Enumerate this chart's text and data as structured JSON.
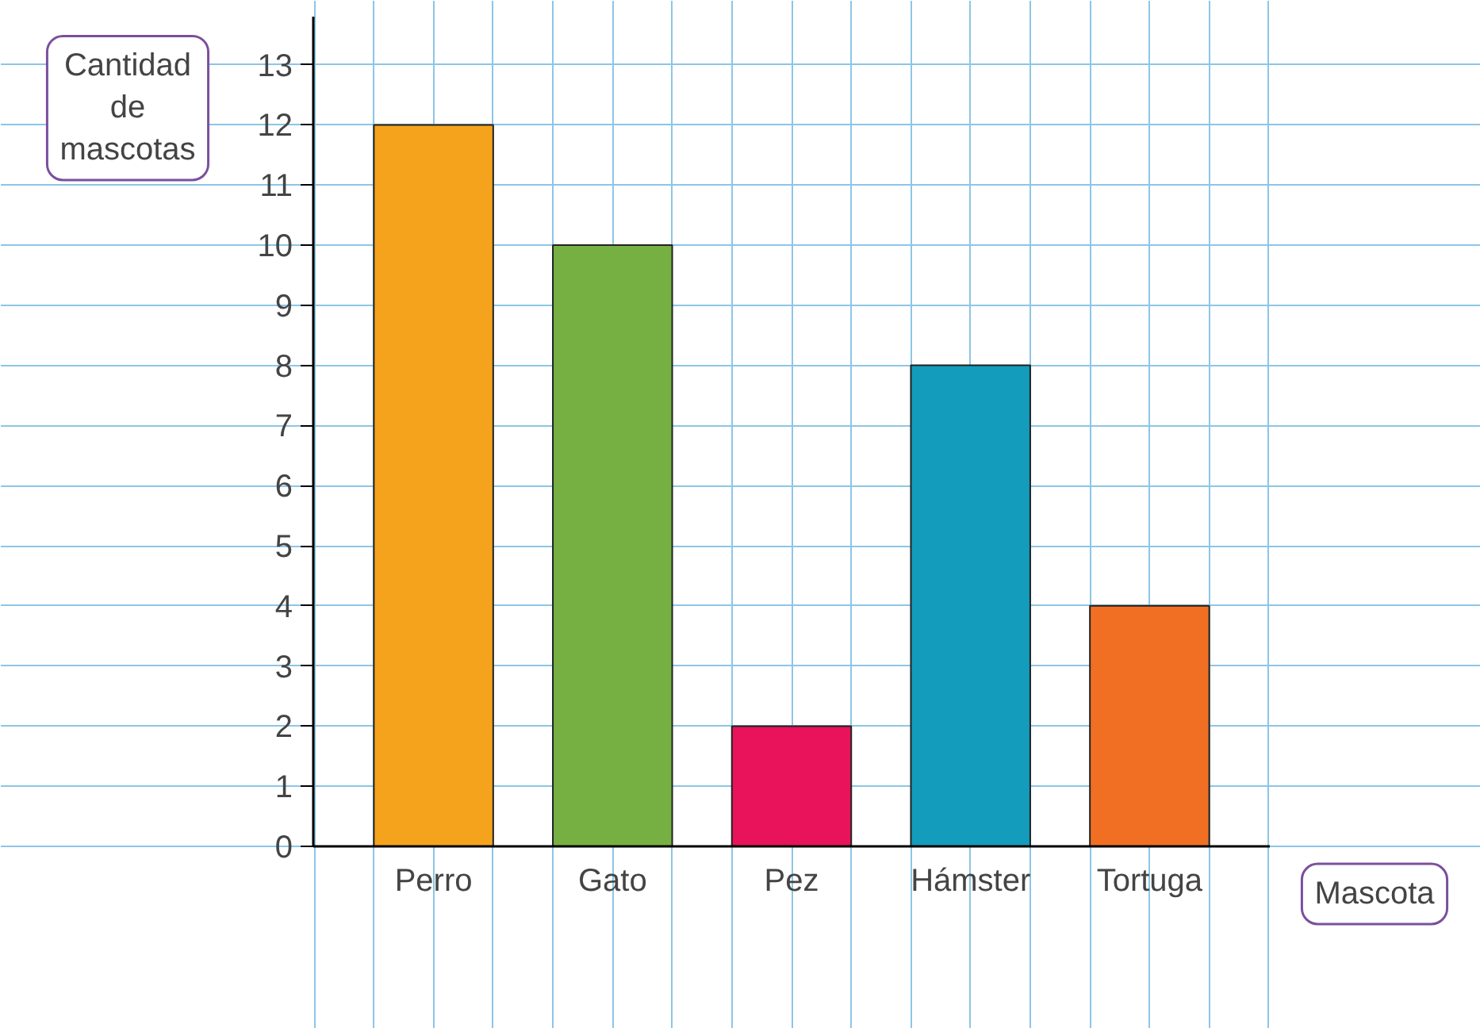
{
  "chart_data": {
    "type": "bar",
    "xlabel": "Mascota",
    "ylabel": "Cantidad de mascotas",
    "categories": [
      "Perro",
      "Gato",
      "Pez",
      "Hámster",
      "Tortuga"
    ],
    "values": [
      12,
      10,
      2,
      8,
      4
    ],
    "colors": [
      "#f5a31c",
      "#76b043",
      "#e8135a",
      "#139cbb",
      "#f06f23"
    ],
    "ylim": [
      0,
      13.8
    ],
    "yticks": [
      0,
      1,
      2,
      3,
      4,
      5,
      6,
      7,
      8,
      9,
      10,
      11,
      12,
      13
    ],
    "grid": true
  }
}
